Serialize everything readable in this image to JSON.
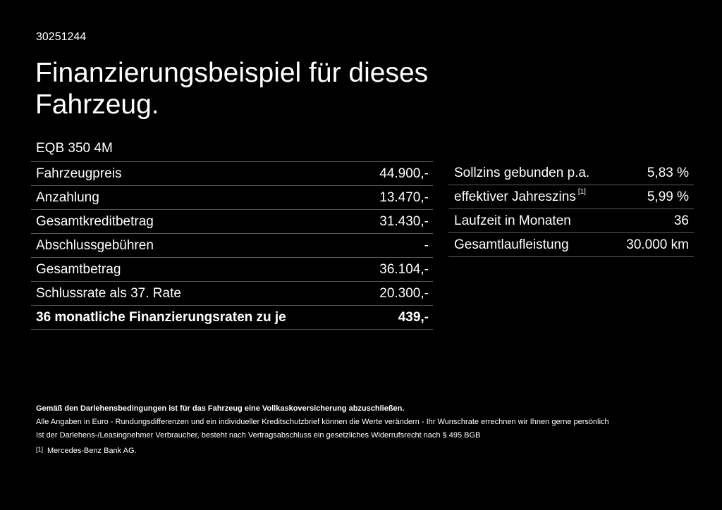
{
  "reference_number": "30251244",
  "title": "Finanzierungsbeispiel für dieses Fahrzeug.",
  "model": "EQB 350 4M",
  "left_table": [
    {
      "label": "Fahrzeugpreis",
      "value": "44.900,-"
    },
    {
      "label": "Anzahlung",
      "value": "13.470,-"
    },
    {
      "label": "Gesamtkreditbetrag",
      "value": "31.430,-"
    },
    {
      "label": "Abschlussgebühren",
      "value": "-"
    },
    {
      "label": "Gesamtbetrag",
      "value": "36.104,-"
    },
    {
      "label": "Schlussrate als 37. Rate",
      "value": "20.300,-"
    },
    {
      "label": "36 monatliche Finanzierungsraten zu je",
      "value": "439,-",
      "bold": true
    }
  ],
  "right_table": [
    {
      "label": "Sollzins gebunden p.a.",
      "value": "5,83 %"
    },
    {
      "label": "effektiver Jahreszins",
      "footnote": "[1]",
      "value": "5,99 %"
    },
    {
      "label": "Laufzeit in Monaten",
      "value": "36"
    },
    {
      "label": "Gesamtlaufleistung",
      "value": "30.000 km"
    }
  ],
  "footer": {
    "insurance_notice": "Gemäß den Darlehensbedingungen ist für das Fahrzeug eine Vollkaskoversicherung abzuschließen.",
    "rounding_notice": "Alle Angaben in Euro - Rundungsdifferenzen und ein individueller Kreditschutzbrief können die Werte verändern - Ihr Wunschrate errechnen wir Ihnen gerne persönlich",
    "withdrawal_notice": "Ist der Darlehens-/Leasingnehmer Verbraucher, besteht nach Vertragsabschluss ein gesetzliches Widerrufsrecht nach § 495 BGB",
    "footnote_mark": "[1]",
    "footnote_text": "Mercedes-Benz Bank AG."
  },
  "colors": {
    "background": "#000000",
    "text": "#ffffff",
    "divider": "#5a5a5a"
  }
}
